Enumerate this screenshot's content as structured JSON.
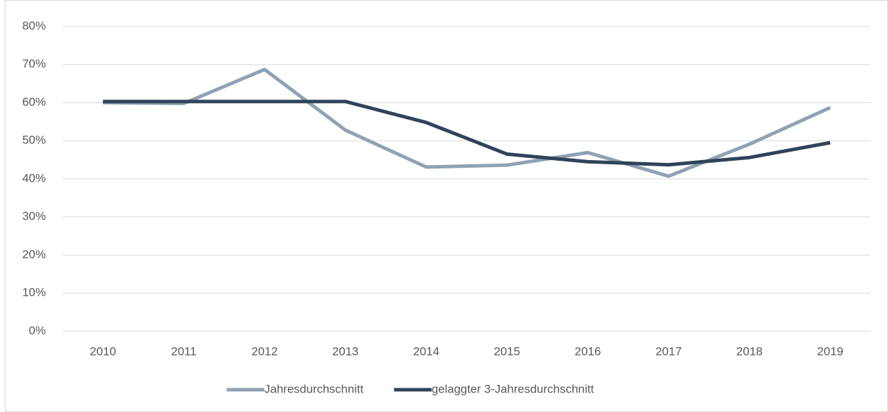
{
  "chart_data": {
    "type": "line",
    "categories": [
      "2010",
      "2011",
      "2012",
      "2013",
      "2014",
      "2015",
      "2016",
      "2017",
      "2018",
      "2019"
    ],
    "series": [
      {
        "name": "Jahresdurchschnitt",
        "color": "#8fa2b4",
        "values": [
          60.0,
          59.8,
          68.7,
          52.8,
          43.1,
          43.6,
          46.9,
          40.7,
          49.1,
          58.7
        ]
      },
      {
        "name": "gelaggter 3-Jahresdurchschnitt",
        "color": "#2f4359",
        "values": [
          60.3,
          60.3,
          60.3,
          60.3,
          54.8,
          46.5,
          44.5,
          43.7,
          45.6,
          49.5
        ]
      }
    ],
    "ylim": [
      0,
      80
    ],
    "yticks": [
      {
        "value": 0,
        "label": "0%"
      },
      {
        "value": 10,
        "label": "10%"
      },
      {
        "value": 20,
        "label": "20%"
      },
      {
        "value": 30,
        "label": "30%"
      },
      {
        "value": 40,
        "label": "40%"
      },
      {
        "value": 50,
        "label": "50%"
      },
      {
        "value": 60,
        "label": "60%"
      },
      {
        "value": 70,
        "label": "70%"
      },
      {
        "value": 80,
        "label": "80%"
      }
    ],
    "grid": true,
    "legend": "bottom"
  }
}
